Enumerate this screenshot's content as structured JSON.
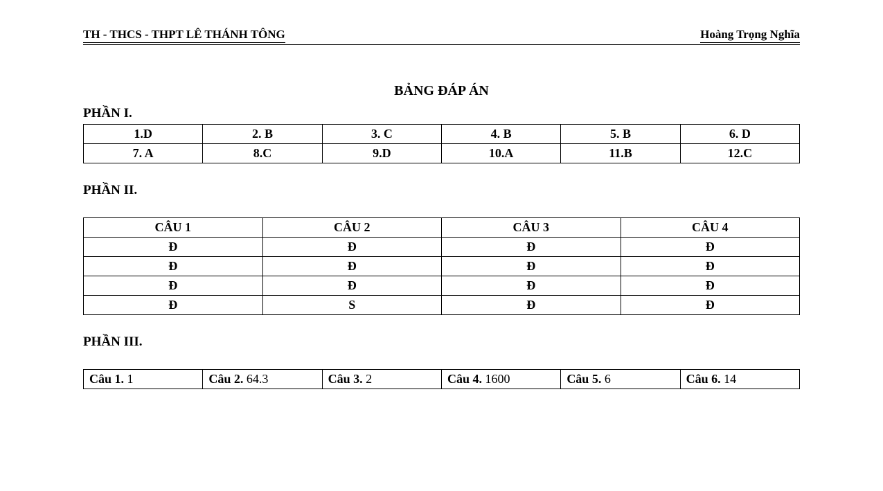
{
  "header": {
    "left": "TH - THCS - THPT LÊ THÁNH TÔNG",
    "right": "Hoàng Trọng Nghĩa"
  },
  "title": "BẢNG ĐÁP ÁN",
  "section_labels": {
    "part1": "PHẦN I.",
    "part2": "PHẦN II.",
    "part3": "PHẦN III."
  },
  "part1": {
    "rows": [
      [
        "1.D",
        "2. B",
        "3. C",
        "4. B",
        "5. B",
        "6. D"
      ],
      [
        "7. A",
        "8.C",
        "9.D",
        "10.A",
        "11.B",
        "12.C"
      ]
    ],
    "cols": 6,
    "font_weight": "bold",
    "text_align": "center",
    "border_color": "#000000",
    "background_color": "#ffffff"
  },
  "part2": {
    "headers": [
      "CÂU 1",
      "CÂU 2",
      "CÂU 3",
      "CÂU 4"
    ],
    "rows": [
      [
        "Đ",
        "Đ",
        "Đ",
        "Đ"
      ],
      [
        "Đ",
        "Đ",
        "Đ",
        "Đ"
      ],
      [
        "Đ",
        "Đ",
        "Đ",
        "Đ"
      ],
      [
        "Đ",
        "S",
        "Đ",
        "Đ"
      ]
    ],
    "cols": 4,
    "font_weight": "bold",
    "text_align": "center",
    "border_color": "#000000",
    "background_color": "#ffffff"
  },
  "part3": {
    "cells": [
      {
        "label": "Câu 1.",
        "value": "1"
      },
      {
        "label": "Câu 2.",
        "value": "64.3"
      },
      {
        "label": "Câu 3.",
        "value": "2"
      },
      {
        "label": "Câu 4.",
        "value": "1600"
      },
      {
        "label": "Câu 5.",
        "value": "6"
      },
      {
        "label": "Câu 6.",
        "value": "14"
      }
    ],
    "cols": 6,
    "label_font_weight": "bold",
    "value_font_weight": "normal",
    "text_align": "left",
    "border_color": "#000000",
    "background_color": "#ffffff"
  },
  "style": {
    "page_background": "#ffffff",
    "text_color": "#000000",
    "font_family": "Times New Roman",
    "title_fontsize": 20,
    "section_fontsize": 19,
    "cell_fontsize": 18,
    "header_fontsize": 17,
    "border_width": 1.5
  }
}
